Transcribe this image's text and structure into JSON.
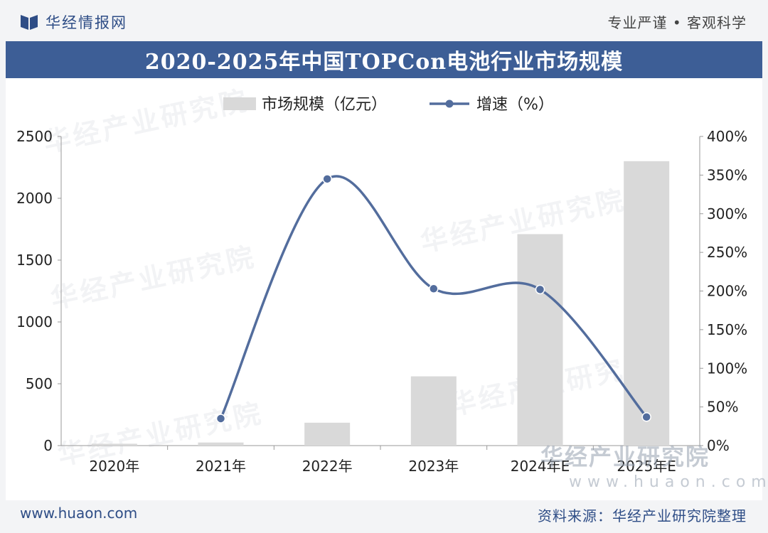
{
  "header": {
    "logo_text": "华经情报网",
    "slogan": "专业严谨 • 客观科学"
  },
  "title": "2020-2025年中国TOPCon电池行业市场规模",
  "watermarks": {
    "brand": "华经产业研究院",
    "url": "www.huaon.com"
  },
  "footer": {
    "url": "www.huaon.com",
    "source": "资料来源：华经产业研究院整理"
  },
  "colors": {
    "bar": "#d9d9d9",
    "line": "#536d9d",
    "title_bg": "#3d5e96",
    "brand": "#2e4d86"
  },
  "chart_data": {
    "type": "bar",
    "title": "",
    "categories": [
      "2020年",
      "2021年",
      "2022年",
      "2023年",
      "2024年E",
      "2025年E"
    ],
    "series": [
      {
        "name": "市场规模（亿元）",
        "type": "bar",
        "axis": "left",
        "values": [
          15,
          25,
          185,
          560,
          1710,
          2300
        ]
      },
      {
        "name": "增速（%）",
        "type": "line",
        "axis": "right",
        "smooth": true,
        "values": [
          null,
          35,
          345,
          203,
          202,
          37
        ]
      }
    ],
    "y_left": {
      "min": 0,
      "max": 2500,
      "ticks": [
        "0",
        "500",
        "1000",
        "1500",
        "2000",
        "2500"
      ]
    },
    "y_right": {
      "min": 0,
      "max": 400,
      "ticks": [
        "0%",
        "50%",
        "100%",
        "150%",
        "200%",
        "250%",
        "300%",
        "350%",
        "400%"
      ]
    },
    "legend": "top-left",
    "grid": false
  }
}
